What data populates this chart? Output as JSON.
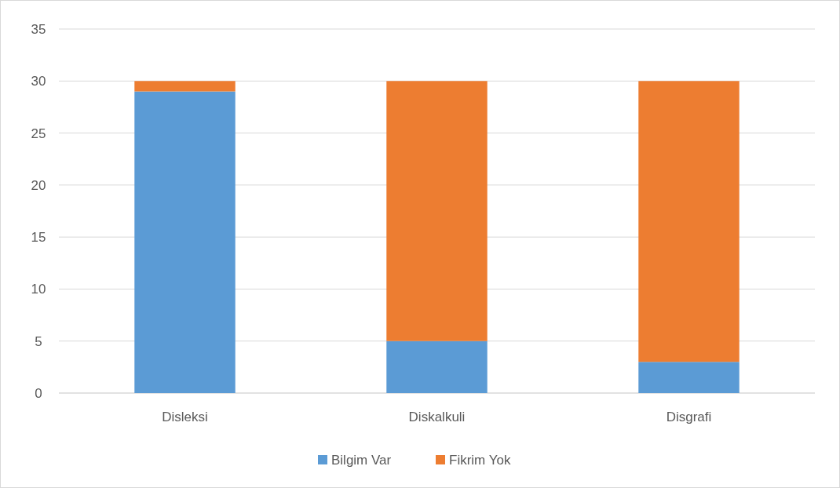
{
  "chart_data": {
    "type": "bar",
    "stacked": true,
    "categories": [
      "Disleksi",
      "Diskalkuli",
      "Disgrafi"
    ],
    "series": [
      {
        "name": "Bilgim Var",
        "color": "#5b9bd5",
        "values": [
          29,
          5,
          3
        ]
      },
      {
        "name": "Fikrim Yok",
        "color": "#ed7d31",
        "values": [
          1,
          25,
          27
        ]
      }
    ],
    "ylim": [
      0,
      35
    ],
    "yticks": [
      0,
      5,
      10,
      15,
      20,
      25,
      30,
      35
    ],
    "grid": "y",
    "legend": "bottom"
  }
}
